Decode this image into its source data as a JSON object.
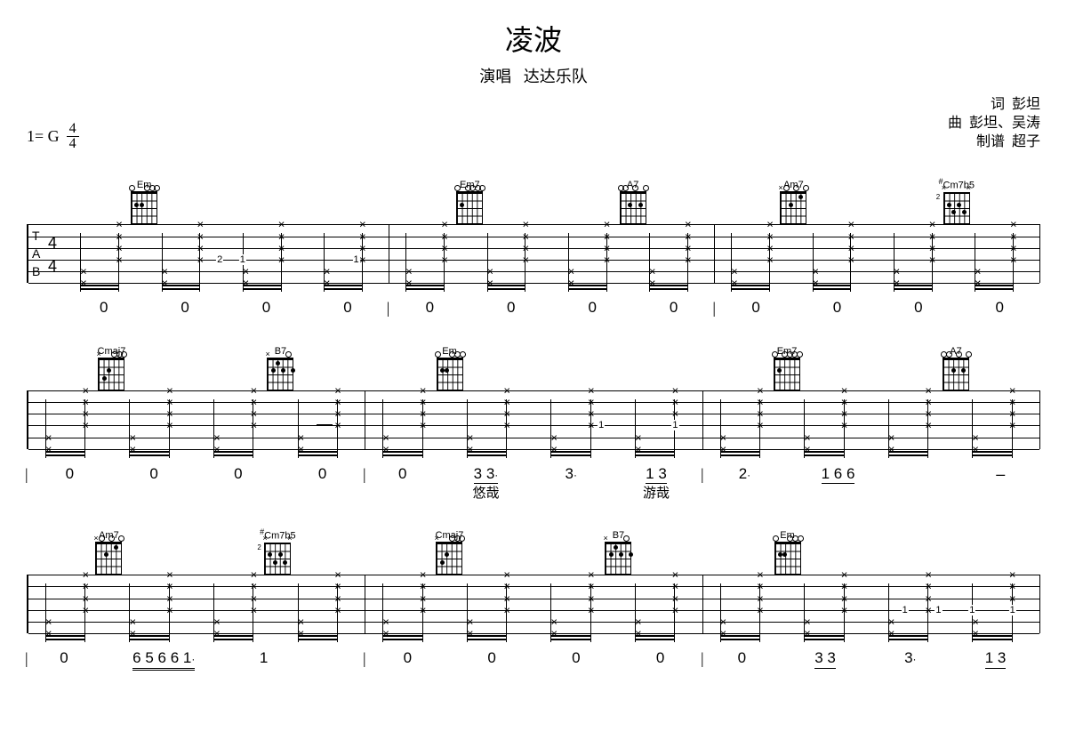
{
  "title": "凌波",
  "subtitle_label": "演唱",
  "subtitle_artist": "达达乐队",
  "key": "1= G",
  "time_num": "4",
  "time_den": "4",
  "credits": {
    "lyrics_label": "词",
    "lyrics": "彭坦",
    "music_label": "曲",
    "music": "彭坦、吴涛",
    "transcribe_label": "制谱",
    "transcribe": "超子"
  },
  "tab_labels": {
    "t": "T",
    "a": "A",
    "b": "B"
  },
  "chords": {
    "Em": "Em",
    "Em7": "Em7",
    "A7": "A7",
    "Am7": "Am7",
    "Cm7b5": "Cm7b5",
    "Cmaj7": "Cmaj7",
    "B7": "B7"
  },
  "sharp": "#",
  "systems": [
    {
      "chord_layout": [
        [
          "Em",
          ""
        ],
        [
          "Em7",
          "A7"
        ],
        [
          "Am7",
          "Cm7b5"
        ]
      ],
      "jianpu": [
        [
          "0",
          "0",
          "0",
          "0"
        ],
        [
          "0",
          "0",
          "0",
          "0"
        ],
        [
          "0",
          "0",
          "0",
          "0"
        ]
      ],
      "lyrics": [
        [],
        [],
        []
      ]
    },
    {
      "chord_layout": [
        [
          "Cmaj7",
          "B7"
        ],
        [
          "Em",
          ""
        ],
        [
          "Em7",
          "A7"
        ]
      ],
      "jianpu": [
        [
          "0",
          "0",
          "0",
          "0"
        ],
        [
          "0",
          "3 3·",
          "3·",
          "1 3"
        ],
        [
          "2·",
          "1 6 6",
          "",
          "-"
        ]
      ],
      "lyrics": [
        [
          "",
          "",
          "",
          ""
        ],
        [
          "",
          "悠哉",
          "",
          "游哉"
        ],
        [
          "",
          "",
          "",
          ""
        ]
      ]
    },
    {
      "chord_layout": [
        [
          "Am7",
          "Cm7b5"
        ],
        [
          "Cmaj7",
          "B7"
        ],
        [
          "Em",
          ""
        ]
      ],
      "jianpu": [
        [
          "0",
          "6 5 6 6 1·",
          "1",
          ""
        ],
        [
          "0",
          "0",
          "0",
          "0"
        ],
        [
          "0",
          "3 3",
          "3·",
          "1 3"
        ]
      ],
      "lyrics": [
        [
          "",
          "",
          "",
          ""
        ],
        [
          "",
          "",
          "",
          ""
        ],
        [
          "",
          "",
          "",
          ""
        ]
      ]
    }
  ]
}
